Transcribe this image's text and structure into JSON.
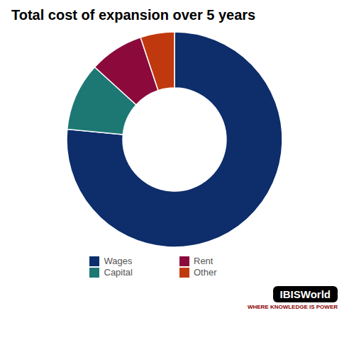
{
  "chart_data": {
    "type": "pie",
    "title": "Total cost of expansion over 5 years",
    "categories": [
      "Wages",
      "Capital",
      "Rent",
      "Other"
    ],
    "values": [
      75,
      10,
      8,
      5
    ],
    "colors": [
      "#0d2d6b",
      "#1d7874",
      "#8b0a3b",
      "#c0390e"
    ],
    "legend": "bottom",
    "annotations": [
      "IBISWorld",
      "WHERE KNOWLEDGE IS POWER"
    ]
  }
}
